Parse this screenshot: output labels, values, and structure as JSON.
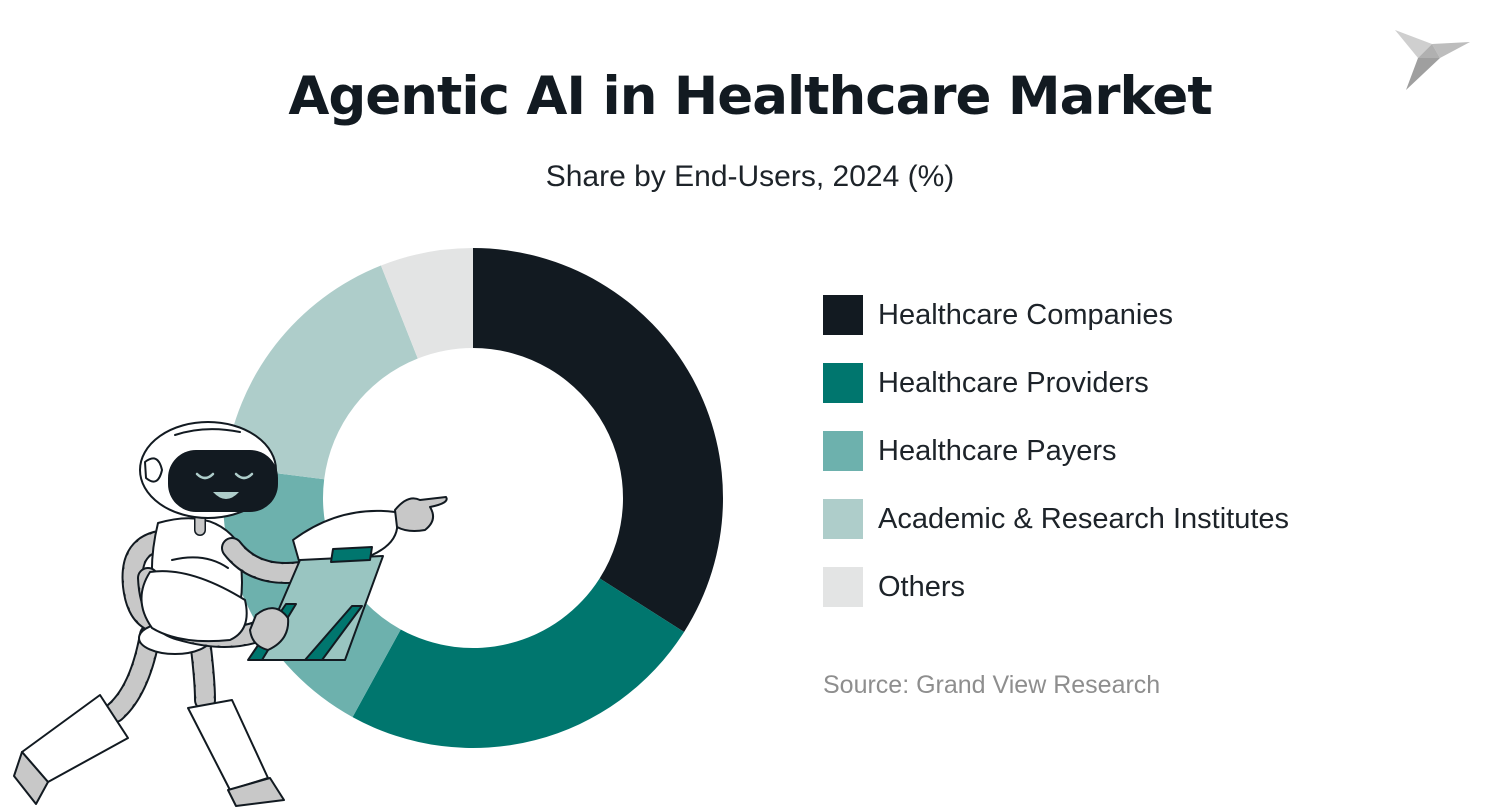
{
  "header": {
    "title": "Agentic AI in Healthcare Market",
    "subtitle": "Share by End-Users, 2024 (%)"
  },
  "chart_data": {
    "type": "pie",
    "variant": "donut",
    "title": "Agentic AI in Healthcare Market",
    "subtitle": "Share by End-Users, 2024 (%)",
    "unit": "%",
    "categories": [
      "Healthcare Companies",
      "Healthcare Providers",
      "Healthcare Payers",
      "Academic & Research Institutes",
      "Others"
    ],
    "values": [
      34,
      24,
      19,
      17,
      6
    ],
    "colors": [
      "#121a21",
      "#00766e",
      "#6db1ad",
      "#aecdca",
      "#e3e4e4"
    ],
    "legend_position": "right"
  },
  "legend": {
    "items": [
      {
        "label": "Healthcare Companies",
        "color": "#121a21"
      },
      {
        "label": "Healthcare Providers",
        "color": "#00766e"
      },
      {
        "label": "Healthcare Payers",
        "color": "#6db1ad"
      },
      {
        "label": "Academic & Research Institutes",
        "color": "#aecdca"
      },
      {
        "label": "Others",
        "color": "#e3e4e4"
      }
    ]
  },
  "source": "Source: Grand View Research",
  "icons": {
    "logo": "origami-bird-logo-icon",
    "illustration": "robot-with-clipboard-illustration"
  }
}
